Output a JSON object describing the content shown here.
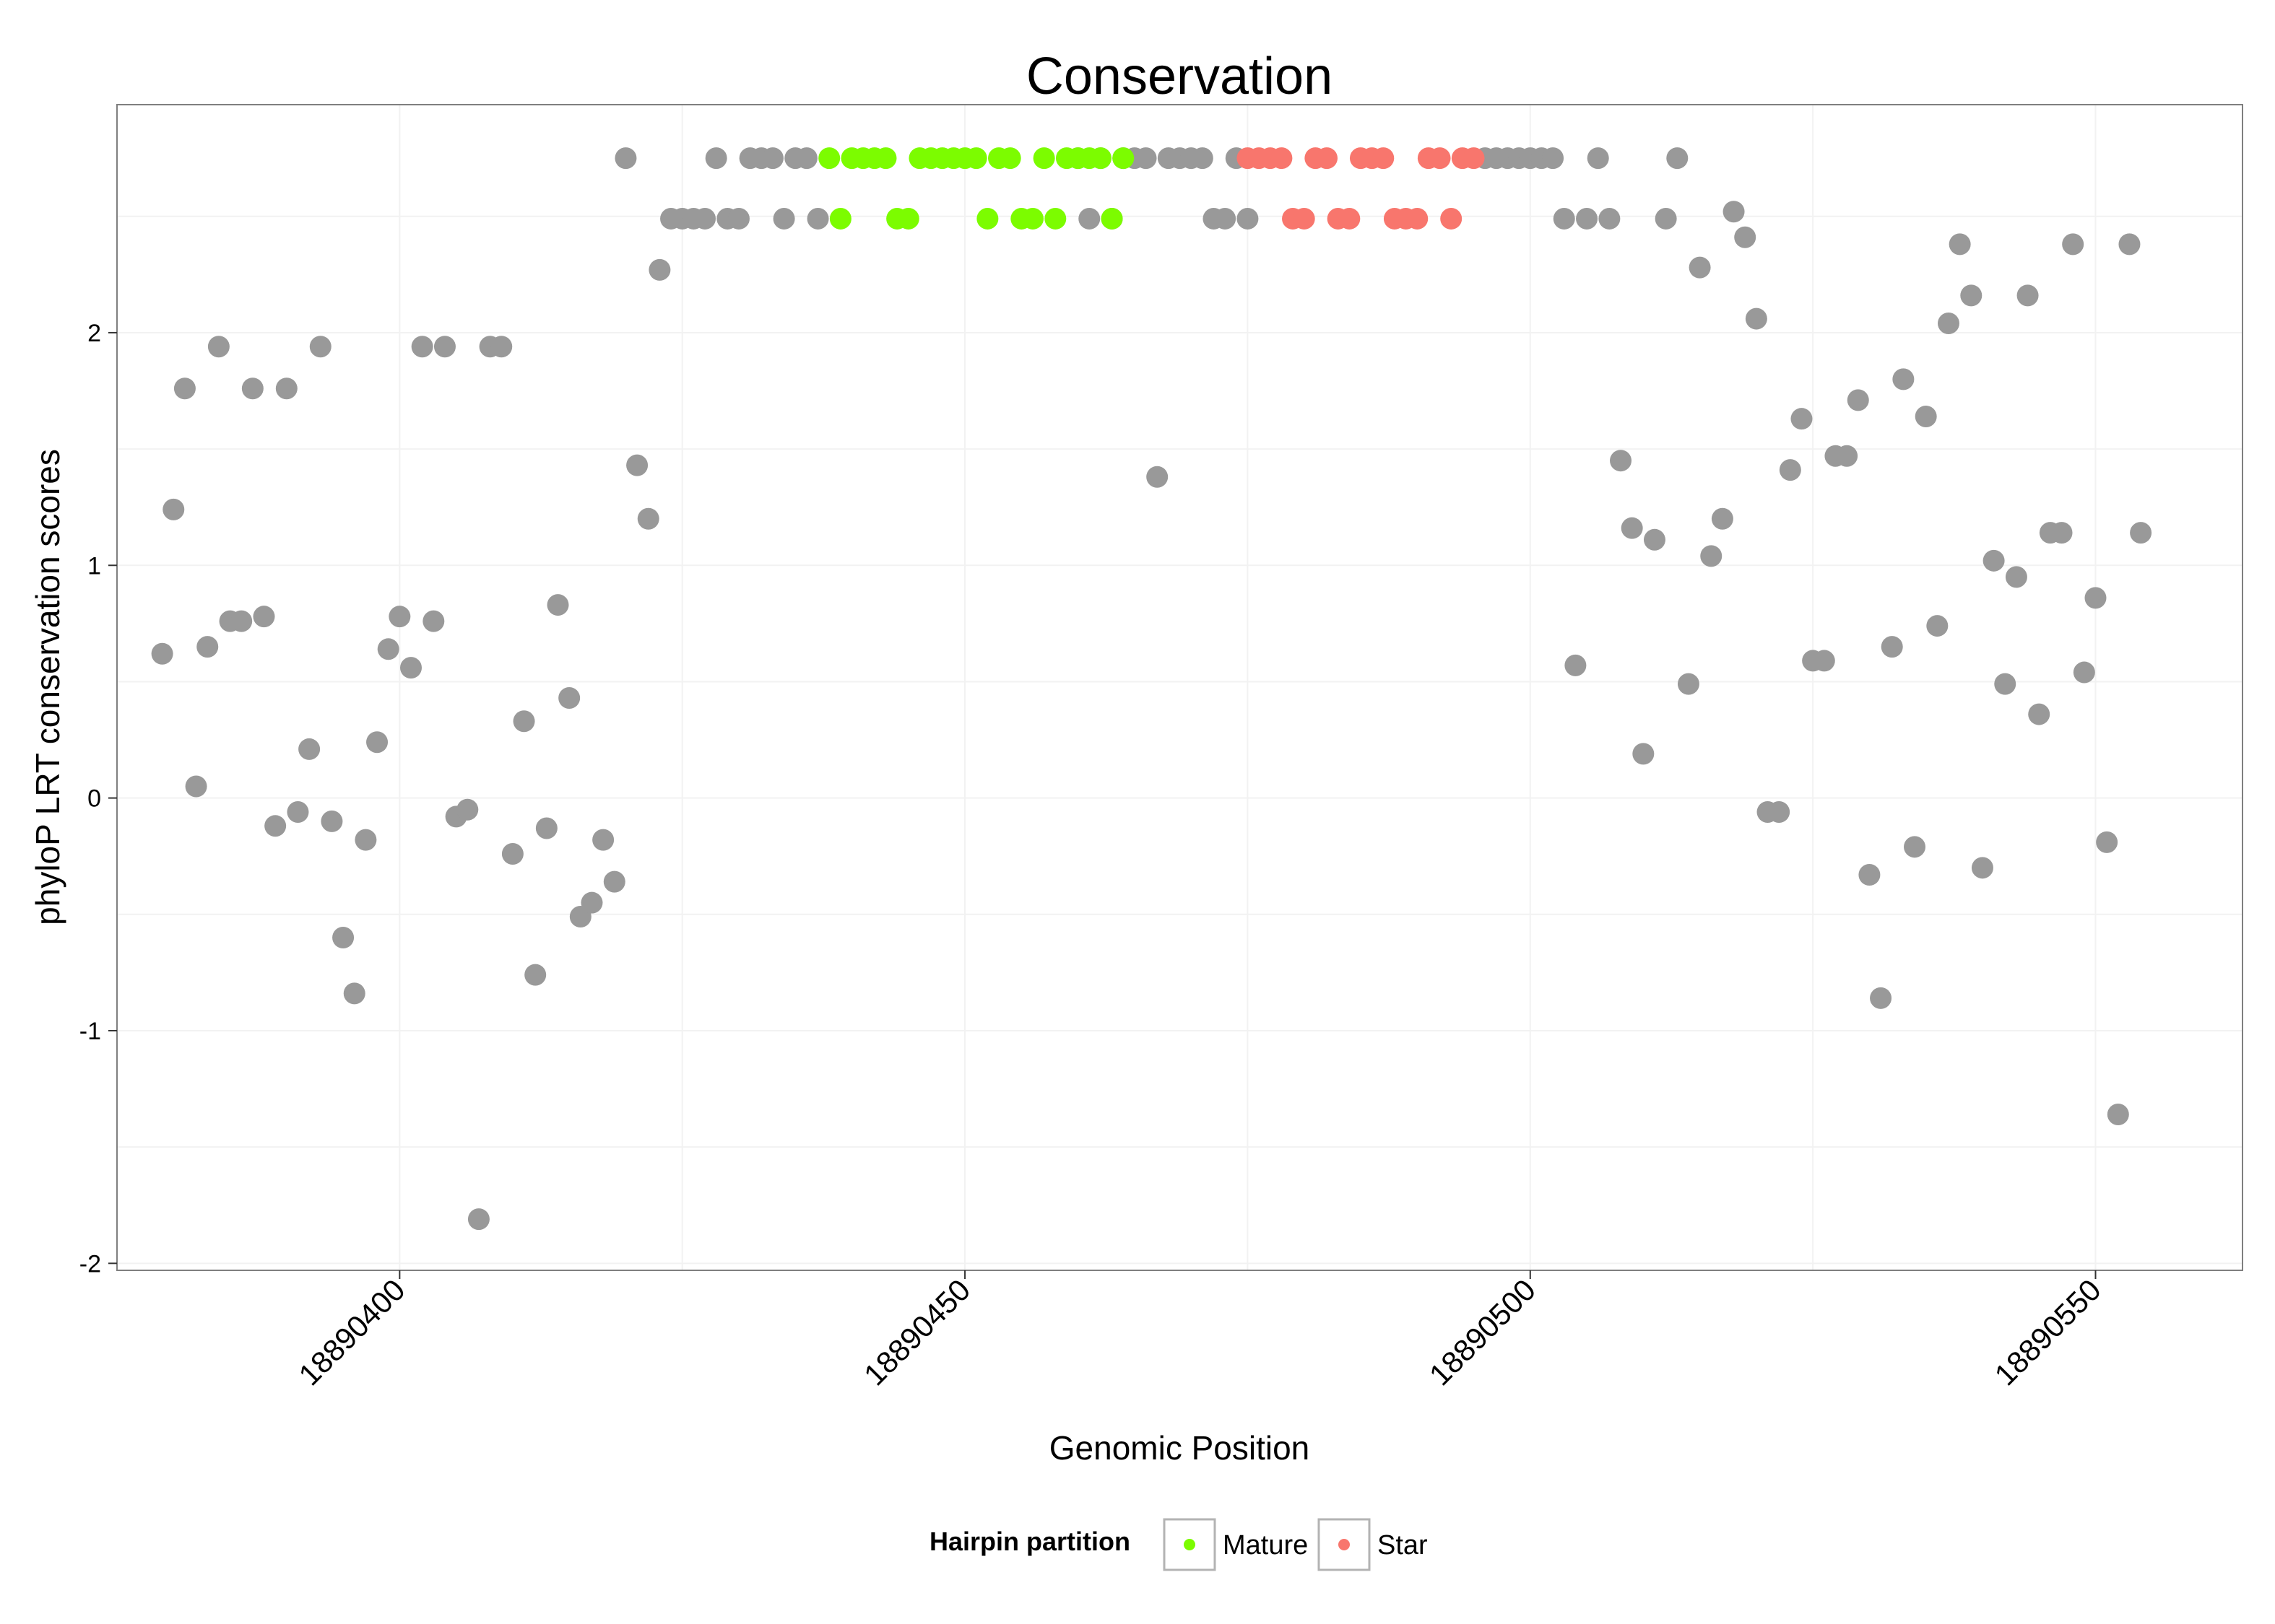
{
  "chart_data": {
    "type": "scatter",
    "title": "Conservation",
    "xlabel": "Genomic Position",
    "ylabel": "phyloP LRT conservation scores",
    "xlim": [
      18890375,
      18890563
    ],
    "ylim": [
      -2.03,
      2.98
    ],
    "x_ticks": [
      18890400,
      18890450,
      18890500,
      18890550
    ],
    "x_tick_labels": [
      "18890400",
      "18890450",
      "18890500",
      "18890550"
    ],
    "y_ticks": [
      -2,
      -1,
      0,
      1,
      2
    ],
    "y_tick_labels": [
      "-2",
      "-1",
      "0",
      "1",
      "2"
    ],
    "grid": true,
    "legend": {
      "title": "Hairpin partition",
      "position": "bottom",
      "entries": [
        {
          "name": "Mature",
          "color": "#7CFC00"
        },
        {
          "name": "Star",
          "color": "#F8766D"
        }
      ]
    },
    "colors": {
      "other": "#999999",
      "Mature": "#7CFC00",
      "Star": "#F8766D"
    },
    "series": [
      {
        "name": "Other",
        "color": "#999999",
        "points": [
          [
            18890379,
            0.62
          ],
          [
            18890380,
            1.24
          ],
          [
            18890381,
            1.76
          ],
          [
            18890382,
            0.05
          ],
          [
            18890383,
            0.65
          ],
          [
            18890384,
            1.94
          ],
          [
            18890385,
            0.76
          ],
          [
            18890386,
            0.76
          ],
          [
            18890387,
            1.76
          ],
          [
            18890388,
            0.78
          ],
          [
            18890389,
            -0.12
          ],
          [
            18890390,
            1.76
          ],
          [
            18890391,
            -0.06
          ],
          [
            18890392,
            0.21
          ],
          [
            18890393,
            1.94
          ],
          [
            18890394,
            -0.1
          ],
          [
            18890395,
            -0.6
          ],
          [
            18890396,
            -0.84
          ],
          [
            18890397,
            -0.18
          ],
          [
            18890398,
            0.24
          ],
          [
            18890399,
            0.64
          ],
          [
            18890400,
            0.78
          ],
          [
            18890401,
            0.56
          ],
          [
            18890402,
            1.94
          ],
          [
            18890403,
            0.76
          ],
          [
            18890404,
            1.94
          ],
          [
            18890405,
            -0.08
          ],
          [
            18890406,
            -0.05
          ],
          [
            18890407,
            -1.81
          ],
          [
            18890408,
            1.94
          ],
          [
            18890409,
            1.94
          ],
          [
            18890410,
            -0.24
          ],
          [
            18890411,
            0.33
          ],
          [
            18890412,
            -0.76
          ],
          [
            18890413,
            -0.13
          ],
          [
            18890414,
            0.83
          ],
          [
            18890415,
            0.43
          ],
          [
            18890416,
            -0.51
          ],
          [
            18890417,
            -0.45
          ],
          [
            18890418,
            -0.18
          ],
          [
            18890419,
            -0.36
          ],
          [
            18890420,
            2.75
          ],
          [
            18890421,
            1.43
          ],
          [
            18890422,
            1.2
          ],
          [
            18890423,
            2.27
          ],
          [
            18890424,
            2.49
          ],
          [
            18890425,
            2.49
          ],
          [
            18890426,
            2.49
          ],
          [
            18890427,
            2.49
          ],
          [
            18890428,
            2.75
          ],
          [
            18890429,
            2.49
          ],
          [
            18890430,
            2.49
          ],
          [
            18890431,
            2.75
          ],
          [
            18890432,
            2.75
          ],
          [
            18890433,
            2.75
          ],
          [
            18890434,
            2.49
          ],
          [
            18890435,
            2.75
          ],
          [
            18890436,
            2.75
          ],
          [
            18890437,
            2.49
          ],
          [
            18890460,
            2.75
          ],
          [
            18890461,
            2.49
          ],
          [
            18890462,
            2.75
          ],
          [
            18890463,
            2.49
          ],
          [
            18890464,
            2.75
          ],
          [
            18890465,
            2.75
          ],
          [
            18890466,
            2.75
          ],
          [
            18890467,
            1.38
          ],
          [
            18890468,
            2.75
          ],
          [
            18890469,
            2.75
          ],
          [
            18890470,
            2.75
          ],
          [
            18890471,
            2.75
          ],
          [
            18890472,
            2.49
          ],
          [
            18890473,
            2.49
          ],
          [
            18890474,
            2.75
          ],
          [
            18890475,
            2.49
          ],
          [
            18890496,
            2.75
          ],
          [
            18890497,
            2.75
          ],
          [
            18890498,
            2.75
          ],
          [
            18890499,
            2.75
          ],
          [
            18890500,
            2.75
          ],
          [
            18890501,
            2.75
          ],
          [
            18890502,
            2.75
          ],
          [
            18890503,
            2.49
          ],
          [
            18890504,
            0.57
          ],
          [
            18890505,
            2.49
          ],
          [
            18890506,
            2.75
          ],
          [
            18890507,
            2.49
          ],
          [
            18890508,
            1.45
          ],
          [
            18890509,
            1.16
          ],
          [
            18890510,
            0.19
          ],
          [
            18890511,
            1.11
          ],
          [
            18890512,
            2.49
          ],
          [
            18890513,
            2.75
          ],
          [
            18890514,
            0.49
          ],
          [
            18890515,
            2.28
          ],
          [
            18890516,
            1.04
          ],
          [
            18890517,
            1.2
          ],
          [
            18890518,
            2.52
          ],
          [
            18890519,
            2.41
          ],
          [
            18890520,
            2.06
          ],
          [
            18890521,
            -0.06
          ],
          [
            18890522,
            -0.06
          ],
          [
            18890523,
            1.41
          ],
          [
            18890524,
            1.63
          ],
          [
            18890525,
            0.59
          ],
          [
            18890526,
            0.59
          ],
          [
            18890527,
            1.47
          ],
          [
            18890528,
            1.47
          ],
          [
            18890529,
            1.71
          ],
          [
            18890530,
            -0.33
          ],
          [
            18890531,
            -0.86
          ],
          [
            18890532,
            0.65
          ],
          [
            18890533,
            1.8
          ],
          [
            18890534,
            -0.21
          ],
          [
            18890535,
            1.64
          ],
          [
            18890536,
            0.74
          ],
          [
            18890537,
            2.04
          ],
          [
            18890538,
            2.38
          ],
          [
            18890539,
            2.16
          ],
          [
            18890540,
            -0.3
          ],
          [
            18890541,
            1.02
          ],
          [
            18890542,
            0.49
          ],
          [
            18890543,
            0.95
          ],
          [
            18890544,
            2.16
          ],
          [
            18890545,
            0.36
          ],
          [
            18890546,
            1.14
          ],
          [
            18890547,
            1.14
          ],
          [
            18890548,
            2.38
          ],
          [
            18890549,
            0.54
          ],
          [
            18890550,
            0.86
          ],
          [
            18890551,
            -0.19
          ],
          [
            18890552,
            -1.36
          ],
          [
            18890553,
            2.38
          ],
          [
            18890554,
            1.14
          ]
        ]
      },
      {
        "name": "Mature",
        "color": "#7CFC00",
        "points": [
          [
            18890438,
            2.75
          ],
          [
            18890439,
            2.49
          ],
          [
            18890440,
            2.75
          ],
          [
            18890441,
            2.75
          ],
          [
            18890442,
            2.75
          ],
          [
            18890443,
            2.75
          ],
          [
            18890444,
            2.49
          ],
          [
            18890445,
            2.49
          ],
          [
            18890446,
            2.75
          ],
          [
            18890447,
            2.75
          ],
          [
            18890448,
            2.75
          ],
          [
            18890449,
            2.75
          ],
          [
            18890450,
            2.75
          ],
          [
            18890451,
            2.75
          ],
          [
            18890452,
            2.49
          ],
          [
            18890453,
            2.75
          ],
          [
            18890454,
            2.75
          ],
          [
            18890455,
            2.49
          ],
          [
            18890456,
            2.49
          ],
          [
            18890457,
            2.75
          ],
          [
            18890458,
            2.49
          ],
          [
            18890459,
            2.75
          ],
          [
            18890460,
            2.75
          ],
          [
            18890461,
            2.75
          ],
          [
            18890462,
            2.75
          ],
          [
            18890463,
            2.49
          ],
          [
            18890464,
            2.75
          ]
        ]
      },
      {
        "name": "Star",
        "color": "#F8766D",
        "points": [
          [
            18890475,
            2.75
          ],
          [
            18890476,
            2.75
          ],
          [
            18890477,
            2.75
          ],
          [
            18890478,
            2.75
          ],
          [
            18890479,
            2.49
          ],
          [
            18890480,
            2.49
          ],
          [
            18890481,
            2.75
          ],
          [
            18890482,
            2.75
          ],
          [
            18890483,
            2.49
          ],
          [
            18890484,
            2.49
          ],
          [
            18890485,
            2.75
          ],
          [
            18890486,
            2.75
          ],
          [
            18890487,
            2.75
          ],
          [
            18890488,
            2.49
          ],
          [
            18890489,
            2.49
          ],
          [
            18890490,
            2.49
          ],
          [
            18890491,
            2.75
          ],
          [
            18890492,
            2.75
          ],
          [
            18890493,
            2.49
          ],
          [
            18890494,
            2.75
          ],
          [
            18890495,
            2.75
          ]
        ]
      }
    ]
  }
}
